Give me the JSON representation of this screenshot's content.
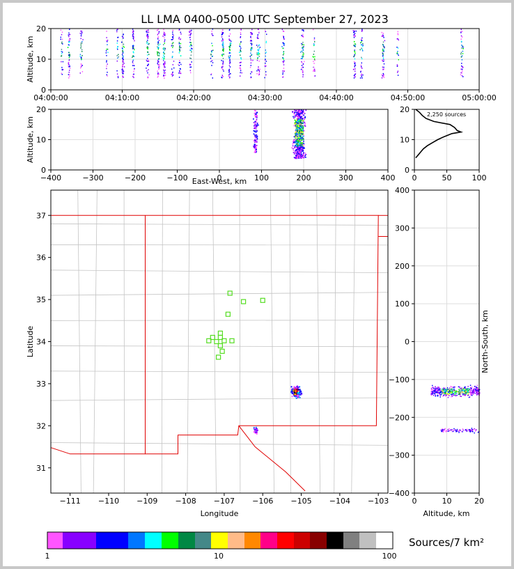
{
  "figure": {
    "title": "LL LMA 0400-0500 UTC September 27, 2023",
    "colorbar_label": "Sources/7 km²"
  },
  "chart_data": [
    {
      "id": "time-height",
      "type": "scatter",
      "title": "LL LMA 0400-0500 UTC September 27, 2023",
      "xlabel": "",
      "ylabel": "Altitude, km",
      "x_ticks": [
        "04:00:00",
        "04:10:00",
        "04:20:00",
        "04:30:00",
        "04:40:00",
        "04:50:00",
        "05:00:00"
      ],
      "xlim_minutes": [
        0,
        60
      ],
      "ylim": [
        0,
        20
      ],
      "y_ticks": [
        0,
        10,
        20
      ],
      "grid": true,
      "burst_minutes": [
        1.5,
        2.5,
        4.2,
        7.8,
        9.3,
        10.0,
        11.5,
        13.5,
        15.0,
        15.8,
        17.0,
        18.0,
        19.5,
        22.5,
        24.0,
        25.0,
        26.5,
        28.0,
        29.0,
        30.0,
        32.5,
        35.2,
        36.8,
        42.5,
        43.5,
        46.5,
        48.5,
        57.5
      ]
    },
    {
      "id": "ew-altitude",
      "type": "heatmap",
      "xlabel": "East-West, km",
      "ylabel": "Altitude, km",
      "xlim": [
        -400,
        400
      ],
      "x_ticks": [
        -400,
        -300,
        -200,
        -100,
        0,
        100,
        200,
        300,
        400
      ],
      "ylim": [
        0,
        20
      ],
      "y_ticks": [
        0,
        10,
        20
      ],
      "clusters": [
        {
          "x_center": 85,
          "x_width": 12,
          "alt_range": [
            6,
            20
          ],
          "density": "low"
        },
        {
          "x_center": 188,
          "x_width": 30,
          "alt_range": [
            4,
            20
          ],
          "density": "high"
        }
      ]
    },
    {
      "id": "altitude-histogram",
      "type": "line",
      "annotation": "2,250 sources",
      "xlim": [
        0,
        100
      ],
      "x_ticks": [
        0,
        50,
        100
      ],
      "ylim": [
        0,
        20
      ],
      "y_ticks": [
        0,
        10,
        20
      ],
      "profile": [
        {
          "alt": 4,
          "count": 2
        },
        {
          "alt": 5,
          "count": 6
        },
        {
          "alt": 6,
          "count": 10
        },
        {
          "alt": 7,
          "count": 14
        },
        {
          "alt": 8,
          "count": 20
        },
        {
          "alt": 9,
          "count": 28
        },
        {
          "alt": 10,
          "count": 36
        },
        {
          "alt": 11,
          "count": 46
        },
        {
          "alt": 12,
          "count": 58
        },
        {
          "alt": 12.5,
          "count": 72
        },
        {
          "alt": 13,
          "count": 66
        },
        {
          "alt": 14,
          "count": 62
        },
        {
          "alt": 15,
          "count": 55
        },
        {
          "alt": 16,
          "count": 30
        },
        {
          "alt": 17,
          "count": 18
        },
        {
          "alt": 18,
          "count": 12
        },
        {
          "alt": 19,
          "count": 8
        },
        {
          "alt": 20,
          "count": 2
        }
      ]
    },
    {
      "id": "plan-view",
      "type": "scatter",
      "xlabel": "Longitude",
      "ylabel": "Latitude",
      "xlim": [
        -111.5,
        -102.75
      ],
      "x_ticks": [
        -111,
        -110,
        -109,
        -108,
        -107,
        -106,
        -105,
        -104,
        -103
      ],
      "ylim": [
        30.4,
        37.6
      ],
      "y_ticks": [
        31,
        32,
        33,
        34,
        35,
        36,
        37
      ],
      "stations": [
        [
          -106.85,
          35.15
        ],
        [
          -106.5,
          34.95
        ],
        [
          -106.0,
          34.98
        ],
        [
          -106.9,
          34.65
        ],
        [
          -107.1,
          34.2
        ],
        [
          -107.3,
          34.1
        ],
        [
          -107.1,
          34.1
        ],
        [
          -107.4,
          34.02
        ],
        [
          -107.2,
          34.0
        ],
        [
          -107.0,
          34.02
        ],
        [
          -106.8,
          34.02
        ],
        [
          -107.1,
          33.9
        ],
        [
          -107.05,
          33.77
        ],
        [
          -107.15,
          33.63
        ]
      ],
      "source_clusters": [
        {
          "lon": -105.15,
          "lat": 32.82,
          "spread_lon": 0.18,
          "spread_lat": 0.18,
          "density": "high"
        },
        {
          "lon": -106.2,
          "lat": 31.9,
          "spread_lon": 0.07,
          "spread_lat": 0.12,
          "density": "low"
        }
      ]
    },
    {
      "id": "altitude-ns",
      "type": "heatmap",
      "xlabel": "Altitude, km",
      "ylabel": "North-South, km",
      "xlim": [
        0,
        20
      ],
      "x_ticks": [
        0,
        10,
        20
      ],
      "ylim": [
        -400,
        400
      ],
      "y_ticks": [
        -400,
        -300,
        -200,
        -100,
        0,
        100,
        200,
        300,
        400
      ],
      "clusters": [
        {
          "ns_center": -130,
          "ns_width": 28,
          "alt_range": [
            5,
            20
          ],
          "density": "high"
        },
        {
          "ns_center": -233,
          "ns_width": 12,
          "alt_range": [
            8,
            20
          ],
          "density": "low"
        }
      ]
    },
    {
      "id": "colorbar",
      "type": "colorbar",
      "scale": "log",
      "range": [
        1,
        100
      ],
      "tick_labels": [
        "1",
        "10",
        "100"
      ],
      "colors": [
        "#ff55ff",
        "#8800ff",
        "#0000ff",
        "#0077ff",
        "#00ffff",
        "#00ff00",
        "#008844",
        "#448888",
        "#ffff00",
        "#ffbb88",
        "#ff8800",
        "#ff0088",
        "#ff0000",
        "#cc0000",
        "#880000",
        "#000000",
        "#808080",
        "#c0c0c0",
        "#ffffff"
      ]
    }
  ]
}
